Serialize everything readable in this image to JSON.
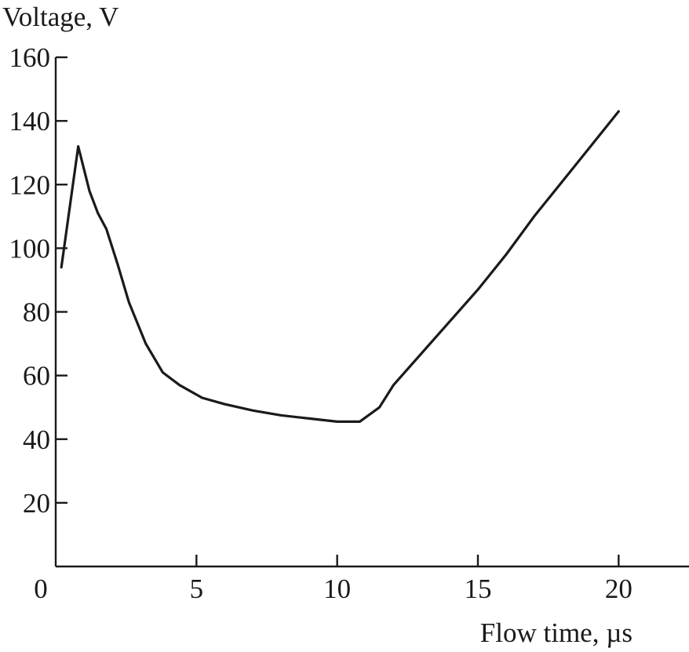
{
  "chart_data": {
    "type": "line",
    "ylabel": "Voltage, V",
    "xlabel": "Flow time, µs",
    "xlim": [
      0,
      22.5
    ],
    "ylim": [
      0,
      160
    ],
    "x_ticks": [
      0,
      5,
      10,
      15,
      20
    ],
    "x_tick_labels": [
      "0",
      "5",
      "10",
      "15",
      "20"
    ],
    "y_ticks": [
      20,
      40,
      60,
      80,
      100,
      120,
      140,
      160
    ],
    "y_tick_labels": [
      "20",
      "40",
      "60",
      "80",
      "100",
      "120",
      "140",
      "160"
    ],
    "grid": false,
    "series": [
      {
        "x": [
          0.2,
          0.8,
          1.2,
          1.5,
          1.8,
          2.2,
          2.6,
          3.2,
          3.8,
          4.4,
          5.2,
          6.0,
          7.0,
          8.0,
          9.0,
          10.0,
          10.8,
          11.5,
          12.0,
          13.0,
          14.0,
          15.0,
          16.0,
          17.0,
          18.0,
          19.0,
          20.0
        ],
        "y": [
          94,
          132,
          118,
          111,
          106,
          95,
          83,
          70,
          61,
          57,
          53,
          51,
          49,
          47.5,
          46.5,
          45.5,
          45.5,
          50,
          57,
          67,
          77,
          87,
          98,
          110,
          121,
          132,
          143
        ]
      }
    ]
  }
}
